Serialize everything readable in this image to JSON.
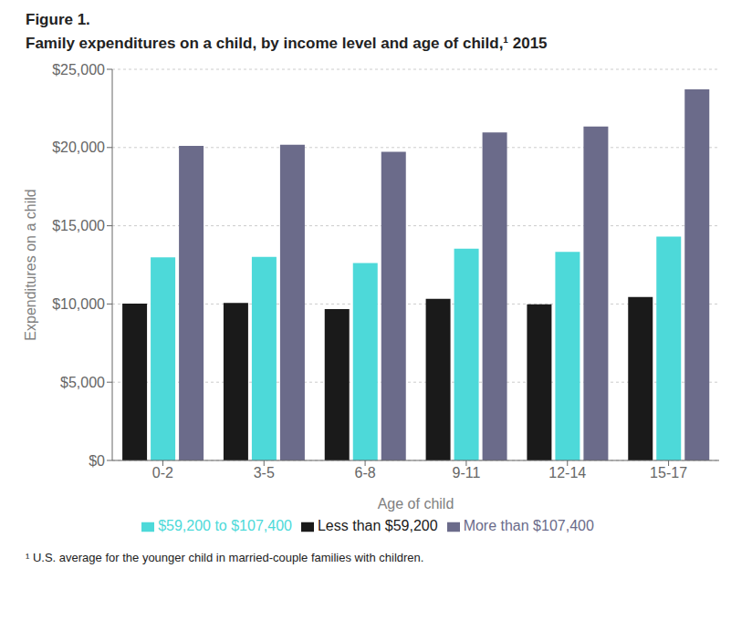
{
  "chart_data": {
    "type": "bar",
    "title": "Family expenditures on a child, by income level and age of child,¹ 2015",
    "annotations": [
      "Figure 1.",
      "¹ U.S. average for the younger child in married-couple families with children."
    ],
    "xlabel": "Age of child",
    "ylabel": "Expenditures on a child",
    "categories": [
      "0-2",
      "3-5",
      "6-8",
      "9-11",
      "12-14",
      "15-17"
    ],
    "series": [
      {
        "name": "Less than $59,200",
        "color": "#1a1a1a",
        "values": [
          10030,
          10060,
          9680,
          10330,
          9980,
          10440
        ]
      },
      {
        "name": "$59,200 to $107,400",
        "color": "#4dd9d9",
        "values": [
          12980,
          13010,
          12620,
          13530,
          13330,
          14310
        ]
      },
      {
        "name": "More than $107,400",
        "color": "#6b6b8a",
        "values": [
          20110,
          20180,
          19730,
          20970,
          21340,
          23720
        ]
      }
    ],
    "ylim": [
      0,
      25000
    ],
    "yticks": [
      {
        "value": 0,
        "label": "$0"
      },
      {
        "value": 5000,
        "label": "$5,000"
      },
      {
        "value": 10000,
        "label": "$10,000"
      },
      {
        "value": 15000,
        "label": "$15,000"
      },
      {
        "value": 20000,
        "label": "$20,000"
      },
      {
        "value": 25000,
        "label": "$25,000"
      }
    ],
    "grid": true,
    "legend": "bottom"
  }
}
